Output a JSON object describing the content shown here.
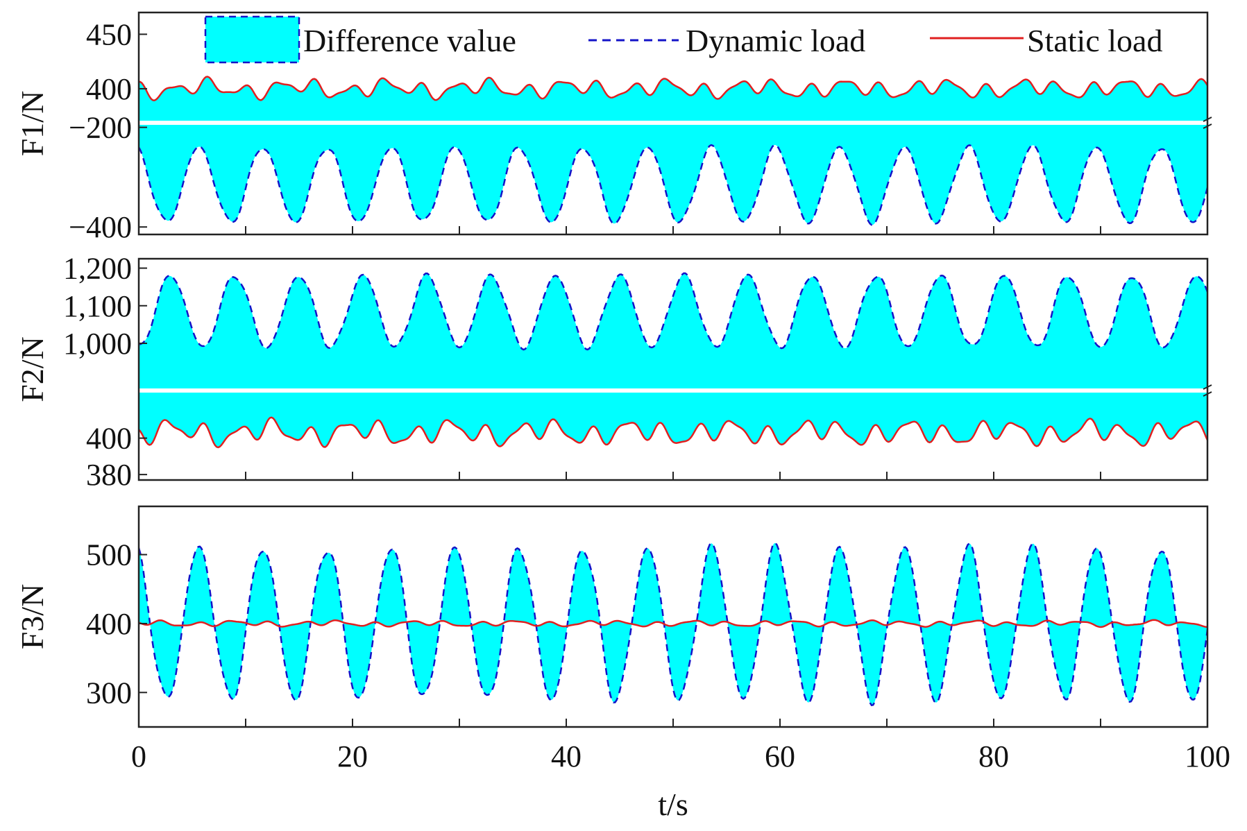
{
  "chart_data": {
    "type": "line",
    "x": {
      "label": "t/s",
      "range": [
        0,
        100
      ],
      "ticks": [
        0,
        20,
        40,
        60,
        80,
        100
      ],
      "minor_ticks": [
        10,
        30,
        50,
        70,
        90
      ]
    },
    "legend": {
      "placement": "top",
      "entries": [
        {
          "name": "Difference value",
          "kind": "fill",
          "color": "#00FFFF",
          "edge_color": "#1414c8"
        },
        {
          "name": "Dynamic load",
          "kind": "dashed-line",
          "color": "#1414c8"
        },
        {
          "name": "Static load",
          "kind": "line",
          "color": "#e02020"
        }
      ]
    },
    "panels": [
      {
        "ylabel": "F1/N",
        "broken_axis": true,
        "upper_segment": {
          "ylim": [
            370,
            470
          ],
          "ticks": [
            400,
            450
          ],
          "tick_labels": [
            "400",
            "450"
          ]
        },
        "lower_segment": {
          "ylim": [
            -415,
            -195
          ],
          "ticks": [
            -200,
            -400
          ],
          "tick_labels": [
            "−200",
            "−400"
          ]
        },
        "static_load": {
          "mean": 400,
          "amplitude": 10
        },
        "dynamic_load": {
          "mean": -315,
          "amplitude": 75,
          "period_s": 6
        },
        "fill_between": "static-dynamic"
      },
      {
        "ylabel": "F2/N",
        "broken_axis": true,
        "upper_segment": {
          "ylim": [
            880,
            1225
          ],
          "ticks": [
            1000,
            1100,
            1200
          ],
          "tick_labels": [
            "1,000",
            "1,100",
            "1,200"
          ]
        },
        "lower_segment": {
          "ylim": [
            377,
            425
          ],
          "ticks": [
            380,
            400
          ],
          "tick_labels": [
            "380",
            "400"
          ]
        },
        "static_load": {
          "mean": 403,
          "amplitude": 8
        },
        "dynamic_load": {
          "mean": 1085,
          "amplitude": 95,
          "period_s": 6
        },
        "fill_between": "static-dynamic"
      },
      {
        "ylabel": "F3/N",
        "broken_axis": false,
        "ylim": [
          250,
          570
        ],
        "ticks": [
          300,
          400,
          500
        ],
        "tick_labels": [
          "300",
          "400",
          "500"
        ],
        "static_load": {
          "mean": 400,
          "amplitude": 5
        },
        "dynamic_load": {
          "mean": 400,
          "amplitude": 110,
          "period_s": 6
        },
        "fill_between": "static-dynamic"
      }
    ]
  }
}
